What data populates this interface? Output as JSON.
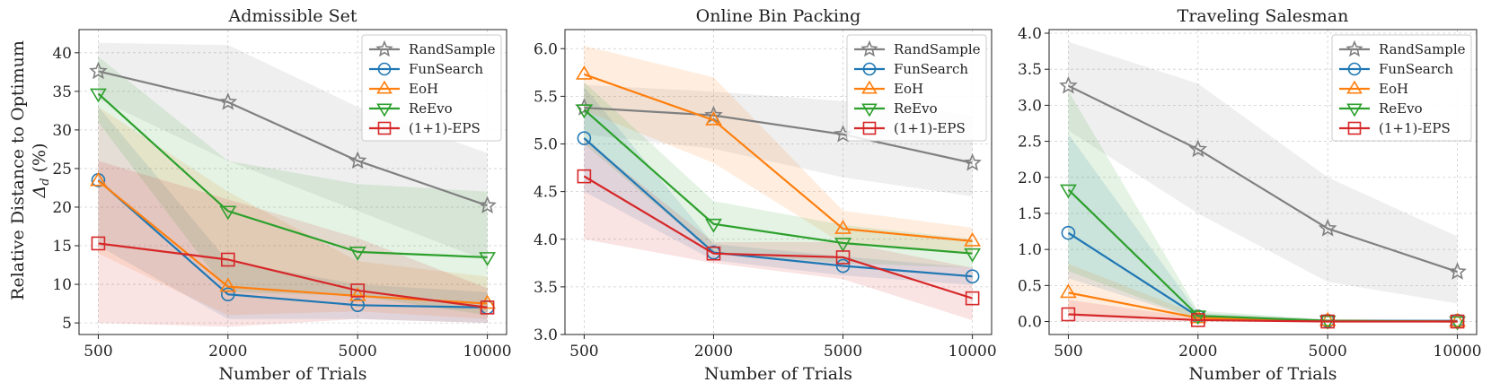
{
  "figure": {
    "ylabel_line1": "Relative Distance to Optimum",
    "ylabel_line2": "Δ",
    "ylabel_line2_sub": "d",
    "ylabel_line2_suffix": " (%)"
  },
  "chart_data": [
    {
      "type": "line",
      "title": "Admissible Set",
      "xlabel": "Number of Trials",
      "categories": [
        "500",
        "2000",
        "5000",
        "10000"
      ],
      "ylim": [
        3.5,
        43
      ],
      "yticks": [
        5,
        10,
        15,
        20,
        25,
        30,
        35,
        40
      ],
      "yticks_labels": [
        "5",
        "10",
        "15",
        "20",
        "25",
        "30",
        "35",
        "40"
      ],
      "grid": true,
      "legend_position": "top-right",
      "series": [
        {
          "name": "RandSample",
          "values": [
            37.6,
            33.6,
            26.0,
            20.2
          ],
          "lower": [
            34.0,
            26.0,
            19.5,
            13.0
          ],
          "upper": [
            41.3,
            41.0,
            33.0,
            27.0
          ]
        },
        {
          "name": "FunSearch",
          "values": [
            23.5,
            8.7,
            7.3,
            7.0
          ],
          "lower": [
            15.0,
            5.5,
            5.5,
            5.0
          ],
          "upper": [
            33.0,
            13.0,
            10.0,
            9.0
          ]
        },
        {
          "name": "EoH",
          "values": [
            23.4,
            9.7,
            8.5,
            7.5
          ],
          "lower": [
            14.0,
            6.0,
            6.5,
            5.5
          ],
          "upper": [
            33.0,
            22.0,
            13.0,
            11.0
          ]
        },
        {
          "name": "ReEvo",
          "values": [
            34.7,
            19.5,
            14.2,
            13.5
          ],
          "lower": [
            31.0,
            9.0,
            8.5,
            6.0
          ],
          "upper": [
            39.5,
            26.0,
            23.0,
            22.0
          ]
        },
        {
          "name": "(1+1)-EPS",
          "values": [
            15.3,
            13.2,
            9.2,
            7.0
          ],
          "lower": [
            5.0,
            4.5,
            5.5,
            5.0
          ],
          "upper": [
            26.0,
            21.0,
            16.0,
            9.5
          ]
        }
      ]
    },
    {
      "type": "line",
      "title": "Online Bin Packing",
      "xlabel": "Number of Trials",
      "categories": [
        "500",
        "2000",
        "5000",
        "10000"
      ],
      "ylim": [
        3.0,
        6.2
      ],
      "yticks": [
        3.0,
        3.5,
        4.0,
        4.5,
        5.0,
        5.5,
        6.0
      ],
      "yticks_labels": [
        "3.0",
        "3.5",
        "4.0",
        "4.5",
        "5.0",
        "5.5",
        "6.0"
      ],
      "grid": true,
      "legend_position": "top-right",
      "series": [
        {
          "name": "RandSample",
          "values": [
            5.38,
            5.3,
            5.1,
            4.8
          ],
          "lower": [
            5.1,
            4.95,
            4.65,
            4.45
          ],
          "upper": [
            5.62,
            5.55,
            5.45,
            5.3
          ]
        },
        {
          "name": "FunSearch",
          "values": [
            5.06,
            3.86,
            3.72,
            3.61
          ],
          "lower": [
            4.5,
            3.78,
            3.62,
            3.52
          ],
          "upper": [
            5.6,
            3.95,
            3.82,
            3.7
          ]
        },
        {
          "name": "EoH",
          "values": [
            5.73,
            5.25,
            4.11,
            3.98
          ],
          "lower": [
            5.35,
            4.8,
            3.95,
            3.85
          ],
          "upper": [
            6.03,
            5.7,
            4.3,
            4.12
          ]
        },
        {
          "name": "ReEvo",
          "values": [
            5.36,
            4.16,
            3.96,
            3.85
          ],
          "lower": [
            5.0,
            3.85,
            3.75,
            3.7
          ],
          "upper": [
            5.65,
            4.4,
            4.15,
            4.0
          ]
        },
        {
          "name": "(1+1)-EPS",
          "values": [
            4.66,
            3.85,
            3.81,
            3.38
          ],
          "lower": [
            4.0,
            3.75,
            3.58,
            3.15
          ],
          "upper": [
            5.05,
            3.97,
            3.97,
            3.7
          ]
        }
      ]
    },
    {
      "type": "line",
      "title": "Traveling Salesman",
      "xlabel": "Number of Trials",
      "categories": [
        "500",
        "2000",
        "5000",
        "10000"
      ],
      "ylim": [
        -0.18,
        4.05
      ],
      "yticks": [
        0.0,
        0.5,
        1.0,
        1.5,
        2.0,
        2.5,
        3.0,
        3.5,
        4.0
      ],
      "yticks_labels": [
        "0.0",
        "0.5",
        "1.0",
        "1.5",
        "2.0",
        "2.5",
        "3.0",
        "3.5",
        "4.0"
      ],
      "grid": true,
      "legend_position": "top-right",
      "series": [
        {
          "name": "RandSample",
          "values": [
            3.27,
            2.39,
            1.29,
            0.69
          ],
          "lower": [
            2.65,
            1.5,
            0.55,
            0.25
          ],
          "upper": [
            3.88,
            3.3,
            2.0,
            1.18
          ]
        },
        {
          "name": "FunSearch",
          "values": [
            1.23,
            0.07,
            0.01,
            0.01
          ],
          "lower": [
            0.6,
            0.03,
            0.0,
            0.0
          ],
          "upper": [
            2.6,
            0.12,
            0.03,
            0.02
          ]
        },
        {
          "name": "EoH",
          "values": [
            0.4,
            0.05,
            0.01,
            0.0
          ],
          "lower": [
            0.1,
            0.02,
            0.0,
            0.0
          ],
          "upper": [
            0.8,
            0.1,
            0.03,
            0.02
          ]
        },
        {
          "name": "ReEvo",
          "values": [
            1.83,
            0.08,
            0.01,
            0.0
          ],
          "lower": [
            0.7,
            0.03,
            0.0,
            0.0
          ],
          "upper": [
            3.2,
            0.15,
            0.03,
            0.02
          ]
        },
        {
          "name": "(1+1)-EPS",
          "values": [
            0.1,
            0.02,
            0.0,
            0.0
          ],
          "lower": [
            0.0,
            0.0,
            0.0,
            0.0
          ],
          "upper": [
            0.3,
            0.05,
            0.02,
            0.02
          ]
        }
      ]
    }
  ],
  "series_styles": [
    {
      "name": "RandSample",
      "color": "#808080",
      "marker": "star"
    },
    {
      "name": "FunSearch",
      "color": "#1f77b4",
      "marker": "circle"
    },
    {
      "name": "EoH",
      "color": "#ff7f0e",
      "marker": "triangle-up"
    },
    {
      "name": "ReEvo",
      "color": "#2ca02c",
      "marker": "triangle-down"
    },
    {
      "name": "(1+1)-EPS",
      "color": "#d62728",
      "marker": "square"
    }
  ]
}
